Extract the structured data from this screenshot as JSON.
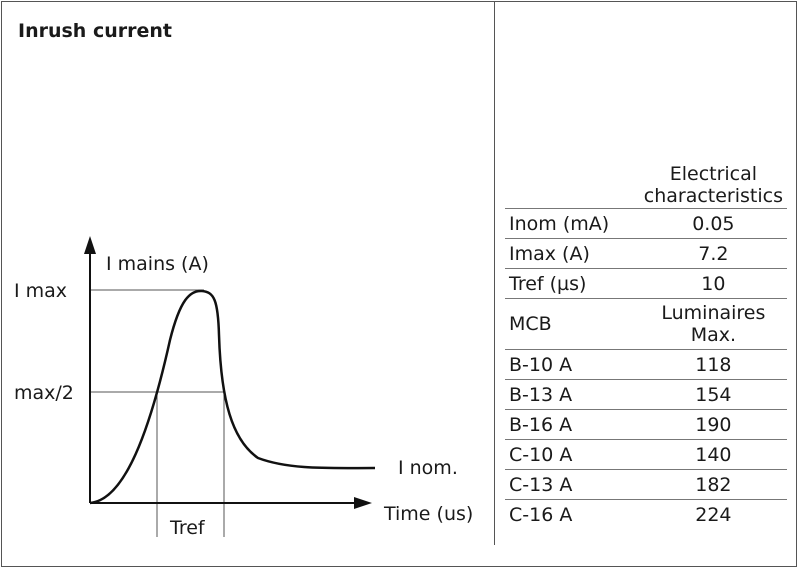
{
  "title": "Inrush current",
  "diagram": {
    "y_axis_label": "I mains (A)",
    "x_axis_label": "Time (us)",
    "label_imax": "I max",
    "label_half": "max/2",
    "label_inom": "I nom.",
    "label_tref": "Tref"
  },
  "table": {
    "header": "Electrical characteristics",
    "rows": [
      {
        "key": "Inom (mA)",
        "value": "0.05"
      },
      {
        "key": "Imax (A)",
        "value": "7.2"
      },
      {
        "key": "Tref (µs)",
        "value": "10"
      }
    ],
    "mcb_label": "MCB",
    "mcb_header": "Luminaires Max.",
    "mcb_rows": [
      {
        "key": "B-10 A",
        "value": "118"
      },
      {
        "key": "B-13 A",
        "value": "154"
      },
      {
        "key": "B-16 A",
        "value": "190"
      },
      {
        "key": "C-10 A",
        "value": "140"
      },
      {
        "key": "C-13 A",
        "value": "182"
      },
      {
        "key": "C-16 A",
        "value": "224"
      }
    ]
  }
}
